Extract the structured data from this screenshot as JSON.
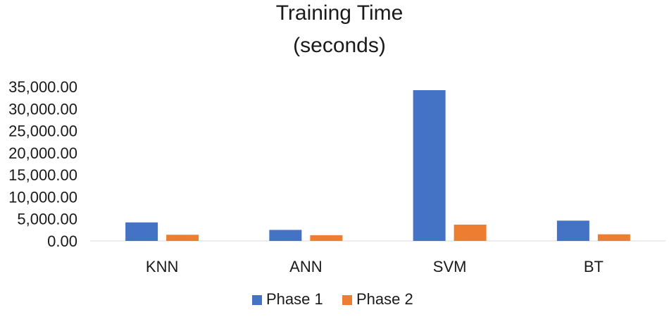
{
  "chart_data": {
    "type": "bar",
    "title_lines": [
      "Training Time",
      "(seconds)"
    ],
    "categories": [
      "KNN",
      "ANN",
      "SVM",
      "BT"
    ],
    "series": [
      {
        "name": "Phase 1",
        "color": "#4472C4",
        "values": [
          4200,
          2500,
          34200,
          4600
        ]
      },
      {
        "name": "Phase 2",
        "color": "#ED7D31",
        "values": [
          1400,
          1300,
          3700,
          1500
        ]
      }
    ],
    "ylim": [
      0,
      35000
    ],
    "yticks": [
      0,
      5000,
      10000,
      15000,
      20000,
      25000,
      30000,
      35000
    ],
    "ytick_labels": [
      "0.00",
      "5,000.00",
      "10,000.00",
      "15,000.00",
      "20,000.00",
      "25,000.00",
      "30,000.00",
      "35,000.00"
    ],
    "grid": false,
    "legend_position": "bottom"
  }
}
